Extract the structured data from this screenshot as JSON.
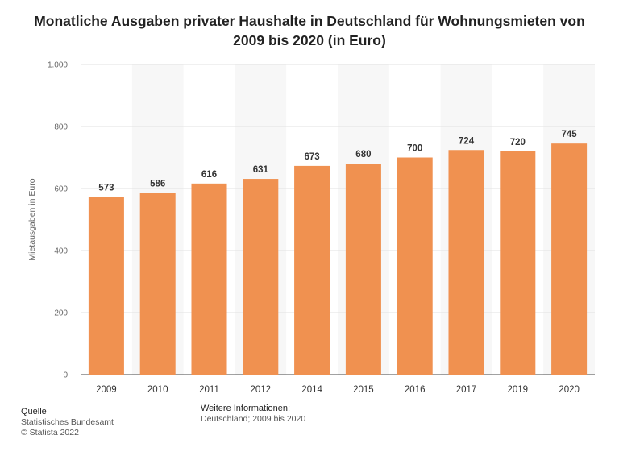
{
  "chart_data": {
    "type": "bar",
    "title_line1": "Monatliche Ausgaben privater Haushalte in Deutschland für Wohnungsmieten von",
    "title_line2": "2009 bis 2020 (in Euro)",
    "xlabel": "",
    "ylabel": "Mietausgaben in Euro",
    "categories": [
      "2009",
      "2010",
      "2011",
      "2012",
      "2014",
      "2015",
      "2016",
      "2017",
      "2019",
      "2020"
    ],
    "values": [
      573,
      586,
      616,
      631,
      673,
      680,
      700,
      724,
      720,
      745
    ],
    "ylim": [
      0,
      1000
    ],
    "yticks": [
      0,
      200,
      400,
      600,
      800,
      1000
    ],
    "ytick_labels": [
      "0",
      "200",
      "400",
      "600",
      "800",
      "1.000"
    ],
    "grid": true,
    "bar_color": "#f09150",
    "stripe_color": "#f7f7f7"
  },
  "footer": {
    "source_heading": "Quelle",
    "source_name": "Statistisches Bundesamt",
    "copyright": "© Statista 2022",
    "info_heading": "Weitere Informationen:",
    "info_text": "Deutschland; 2009 bis 2020"
  }
}
